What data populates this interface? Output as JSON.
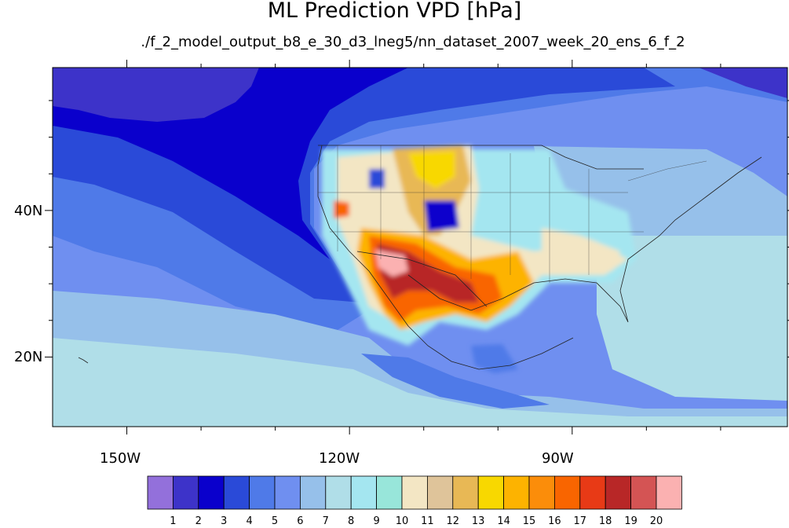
{
  "title": "ML Prediction VPD [hPa]",
  "subtitle": "./f_2_model_output_b8_e_30_d3_lneg5/nn_dataset_2007_week_20_ens_6_f_2",
  "map": {
    "lon_range": [
      -160,
      -61
    ],
    "lat_range": [
      10.5,
      59.5
    ],
    "lon_labels": [
      "150W",
      "120W",
      "90W"
    ],
    "lat_labels": [
      "40N",
      "20N"
    ]
  },
  "colorbar": {
    "labels": [
      "1",
      "2",
      "3",
      "4",
      "5",
      "6",
      "7",
      "8",
      "9",
      "10",
      "11",
      "12",
      "13",
      "14",
      "15",
      "16",
      "17",
      "18",
      "19",
      "20"
    ],
    "colors": [
      "#9370db",
      "#3d33c9",
      "#0a00cc",
      "#2a4ad8",
      "#4f7ae8",
      "#6f8ff0",
      "#96c0ea",
      "#b0dee8",
      "#a4e6f0",
      "#98e6da",
      "#f3e6c4",
      "#dfc49a",
      "#e8b855",
      "#f8d800",
      "#fdb300",
      "#fb8d0a",
      "#f96500",
      "#e83a16",
      "#b82727",
      "#d45454",
      "#fbb1b1"
    ]
  }
}
